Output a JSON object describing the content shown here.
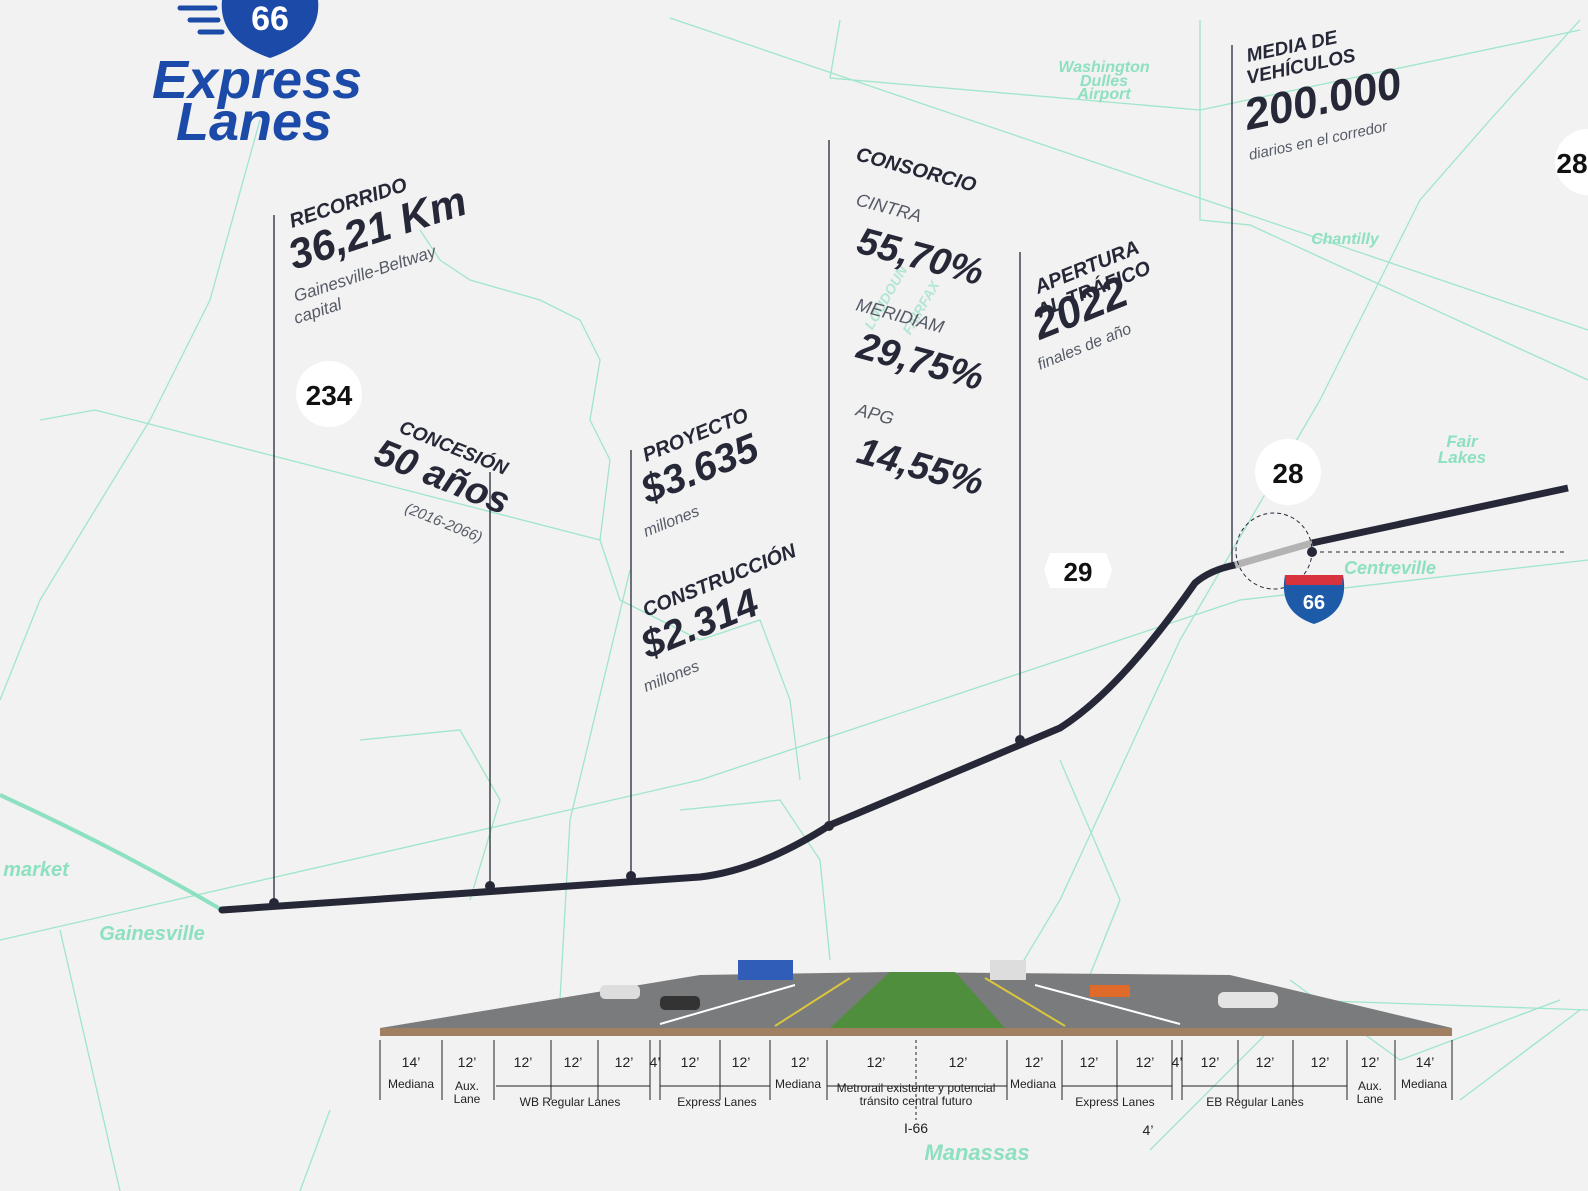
{
  "logo": {
    "number": "66",
    "line1": "Express",
    "line2": "Lanes"
  },
  "stats": {
    "recorrido": {
      "title": "RECORRIDO",
      "value": "36,21 Km",
      "sub1": "Gainesville-Beltway",
      "sub2": "capital"
    },
    "concesion": {
      "title": "CONCESIÓN",
      "value": "50 años",
      "sub": "(2016-2066)"
    },
    "proyecto": {
      "title": "PROYECTO",
      "value": "$3.635",
      "sub": "millones"
    },
    "construccion": {
      "title": "CONSTRUCCIÓN",
      "value": "$2.314",
      "sub": "millones"
    },
    "consorcio": {
      "title": "CONSORCIO",
      "members": [
        {
          "name": "CINTRA",
          "share": "55,70%"
        },
        {
          "name": "MERIDIAM",
          "share": "29,75%"
        },
        {
          "name": "APG",
          "share": "14,55%"
        }
      ]
    },
    "apertura": {
      "title1": "APERTURA",
      "title2": "AL TRÁFICO",
      "value": "2022",
      "sub": "finales de año"
    },
    "media": {
      "title1": "MEDIA DE",
      "title2": "VEHÍCULOS",
      "value": "200.000",
      "sub": "diarios en el corredor"
    }
  },
  "map_labels": {
    "airport": [
      "Washington",
      "Dulles",
      "Airport"
    ],
    "chantilly": "Chantilly",
    "fair_lakes": [
      "Fair",
      "Lakes"
    ],
    "centreville": "Centreville",
    "gainesville": "Gainesville",
    "market": "market",
    "manassas": "Manassas",
    "loudoun": "LOUDOUN",
    "fairfax": "FAIRFAX"
  },
  "shields": {
    "r234": "234",
    "r28": "28",
    "r29": "29",
    "i66": "66",
    "r28_edge": "28"
  },
  "cross_section": {
    "dims": [
      "14’",
      "12’",
      "12’",
      "12’",
      "12’",
      "4’",
      "12’",
      "12’",
      "12’",
      "12’",
      "12’",
      "12’",
      "12’",
      "12’",
      "4’",
      "12’",
      "12’",
      "12’",
      "12’",
      "14’"
    ],
    "groups": [
      [
        "Mediana"
      ],
      [
        "Aux.",
        "Lane"
      ],
      [
        "WB Regular Lanes"
      ],
      [
        "Express Lanes"
      ],
      [
        "Mediana"
      ],
      [
        "Metrorail existente y potencial",
        "tránsito central futuro"
      ],
      [
        "Mediana"
      ],
      [
        "Express Lanes"
      ],
      [
        "EB Regular Lanes"
      ],
      [
        "Aux.",
        "Lane"
      ],
      [
        "Mediana"
      ]
    ],
    "center_label": "I-66",
    "bottom_dim": "4’"
  }
}
